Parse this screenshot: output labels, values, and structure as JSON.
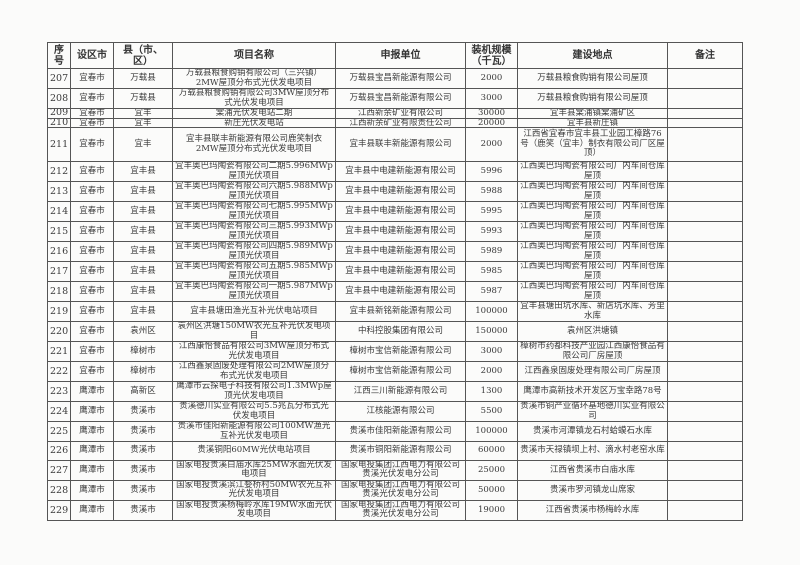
{
  "headers": [
    "序号",
    "设区市",
    "县（市、区）",
    "项目名称",
    "申报单位",
    "装机规模（千瓦）",
    "建设地点",
    "备注"
  ],
  "rows": [
    {
      "seq": "207",
      "city": "宜春市",
      "county": "万载县",
      "project": "万载县粮食购销有限公司（三兴镇）2MW屋顶分布式光伏发电项目",
      "applicant": "万载县宝昌新能源有限公司",
      "capacity": "2000",
      "location": "万载县粮食购销有限公司屋顶",
      "note": ""
    },
    {
      "seq": "208",
      "city": "宜春市",
      "county": "万载县",
      "project": "万载县粮食购销有限公司3MW屋顶分布式光伏发电项目",
      "applicant": "万载县宝昌新能源有限公司",
      "capacity": "3000",
      "location": "万载县粮食购销有限公司屋顶",
      "note": ""
    },
    {
      "seq": "209",
      "city": "宜春市",
      "county": "宜丰",
      "project": "棠浦光伏发电站二期",
      "applicant": "江西新余矿业有限公司",
      "capacity": "30000",
      "location": "宜丰县棠浦镇棠浦矿区",
      "note": ""
    },
    {
      "seq": "210",
      "city": "宜春市",
      "county": "宜丰",
      "project": "新庄光伏发电站",
      "applicant": "江西新余矿业有限责任公司",
      "capacity": "20000",
      "location": "宜丰县新庄镇",
      "note": ""
    },
    {
      "seq": "211",
      "city": "宜春市",
      "county": "宜丰",
      "project": "宜丰县联丰新能源有限公司鹿笑制衣2MW屋顶分布式光伏发电项目",
      "applicant": "宜丰县联丰新能源有限公司",
      "capacity": "2000",
      "location": "江西省宜春市宜丰县工业园工樟路76号（鹿笑（宜丰）制衣有限公司厂区屋顶）",
      "note": ""
    },
    {
      "seq": "212",
      "city": "宜春市",
      "county": "宜丰县",
      "project": "宜丰奥巴玛陶瓷有限公司二期5.996MWp屋顶光伏项目",
      "applicant": "宜丰县中电建新能源有限公司",
      "capacity": "5996",
      "location": "江西奥巴玛陶瓷有限公司厂内车间仓库屋顶",
      "note": ""
    },
    {
      "seq": "213",
      "city": "宜春市",
      "county": "宜丰县",
      "project": "宜丰奥巴玛陶瓷有限公司六期5.988MWp屋顶光伏项目",
      "applicant": "宜丰县中电建新能源有限公司",
      "capacity": "5988",
      "location": "江西奥巴玛陶瓷有限公司厂内车间仓库屋顶",
      "note": ""
    },
    {
      "seq": "214",
      "city": "宜春市",
      "county": "宜丰县",
      "project": "宜丰奥巴玛陶瓷有限公司七期5.995MWp屋顶光伏项目",
      "applicant": "宜丰县中电建新能源有限公司",
      "capacity": "5995",
      "location": "江西奥巴玛陶瓷有限公司厂内车间仓库屋顶",
      "note": ""
    },
    {
      "seq": "215",
      "city": "宜春市",
      "county": "宜丰县",
      "project": "宜丰奥巴玛陶瓷有限公司三期5.993MWp屋顶光伏项目",
      "applicant": "宜丰县中电建新能源有限公司",
      "capacity": "5993",
      "location": "江西奥巴玛陶瓷有限公司厂内车间仓库屋顶",
      "note": ""
    },
    {
      "seq": "216",
      "city": "宜春市",
      "county": "宜丰县",
      "project": "宜丰奥巴玛陶瓷有限公司四期5.989MWp屋顶光伏项目",
      "applicant": "宜丰县中电建新能源有限公司",
      "capacity": "5989",
      "location": "江西奥巴玛陶瓷有限公司厂内车间仓库屋顶",
      "note": ""
    },
    {
      "seq": "217",
      "city": "宜春市",
      "county": "宜丰县",
      "project": "宜丰奥巴玛陶瓷有限公司五期5.985MWp屋顶光伏项目",
      "applicant": "宜丰县中电建新能源有限公司",
      "capacity": "5985",
      "location": "江西奥巴玛陶瓷有限公司厂内车间仓库屋顶",
      "note": ""
    },
    {
      "seq": "218",
      "city": "宜春市",
      "county": "宜丰县",
      "project": "宜丰奥巴玛陶瓷有限公司一期5.987MWp屋顶光伏项目",
      "applicant": "宜丰县中电建新能源有限公司",
      "capacity": "5987",
      "location": "江西奥巴玛陶瓷有限公司厂内车间仓库屋顶",
      "note": ""
    },
    {
      "seq": "219",
      "city": "宜春市",
      "county": "宜丰县",
      "project": "宜丰县塘田渔光互补光伏电站项目",
      "applicant": "宜丰县新铭新能源有限公司",
      "capacity": "100000",
      "location": "宜丰县塘田坑水库、新店坑水库、芳里水库",
      "note": ""
    },
    {
      "seq": "220",
      "city": "宜春市",
      "county": "袁州区",
      "project": "袁州区洪塘150MW农光互补光伏发电项目",
      "applicant": "中科控股集团有限公司",
      "capacity": "150000",
      "location": "袁州区洪塘镇",
      "note": ""
    },
    {
      "seq": "221",
      "city": "宜春市",
      "county": "樟树市",
      "project": "江西康怡食品有限公司3MW屋顶分布式光伏发电项目",
      "applicant": "樟树市宝信新能源有限公司",
      "capacity": "3000",
      "location": "樟树市药都科技产业园江西康怡食品有限公司厂房屋顶",
      "note": ""
    },
    {
      "seq": "222",
      "city": "宜春市",
      "county": "樟树市",
      "project": "江西鑫泉固废处理有限公司2MW屋顶分布式光伏发电项目",
      "applicant": "樟树市宝信新能源有限公司",
      "capacity": "2000",
      "location": "江西鑫泉固废处理有限公司厂房屋顶",
      "note": ""
    },
    {
      "seq": "223",
      "city": "鹰潭市",
      "county": "高新区",
      "project": "鹰潭市云探电子科技有限公司1.3MWp屋顶光伏发电项目",
      "applicant": "江西三川新能源有限公司",
      "capacity": "1300",
      "location": "鹰潭市高新技术开发区万宝幸路78号",
      "note": ""
    },
    {
      "seq": "224",
      "city": "鹰潭市",
      "county": "贵溪市",
      "project": "贵溪德川实业有限公司5.5兆瓦分布式光伏发电项目",
      "applicant": "江核能源有限公司",
      "capacity": "5500",
      "location": "贵溪市铜产业循环基地德川实业有限公司",
      "note": ""
    },
    {
      "seq": "225",
      "city": "鹰潭市",
      "county": "贵溪市",
      "project": "贵溪市佳阳新能源有限公司100MW渔光互补光伏发电项目",
      "applicant": "贵溪市佳阳新能源有限公司",
      "capacity": "100000",
      "location": "贵溪市河潭镇龙石村蛤蟆石水库",
      "note": ""
    },
    {
      "seq": "226",
      "city": "鹰潭市",
      "county": "贵溪市",
      "project": "贵溪铜阳60MW光伏电站项目",
      "applicant": "贵溪市铜阳新能源有限公司",
      "capacity": "60000",
      "location": "贵溪市天禄镇坝上村、滴水村老窑水库",
      "note": ""
    },
    {
      "seq": "227",
      "city": "鹰潭市",
      "county": "贵溪市",
      "project": "国家电投贵溪白庙水库25MW水面光伏发电项目",
      "applicant": "国家电投集团江西电力有限公司贵溪光伏发电分公司",
      "capacity": "25000",
      "location": "江西省贵溪市白庙水库",
      "note": ""
    },
    {
      "seq": "228",
      "city": "鹰潭市",
      "county": "贵溪市",
      "project": "国家电投贵溪滨江婺桥村50MW农光互补光伏发电项目",
      "applicant": "国家电投集团江西电力有限公司贵溪光伏发电分公司",
      "capacity": "50000",
      "location": "贵溪市罗河镇龙山席家",
      "note": ""
    },
    {
      "seq": "229",
      "city": "鹰潭市",
      "county": "贵溪市",
      "project": "国家电投贵溪杨梅岭水库19MW水面光伏发电项目",
      "applicant": "国家电投集团江西电力有限公司贵溪光伏发电分公司",
      "capacity": "19000",
      "location": "江西省贵溪市杨梅岭水库",
      "note": ""
    }
  ]
}
